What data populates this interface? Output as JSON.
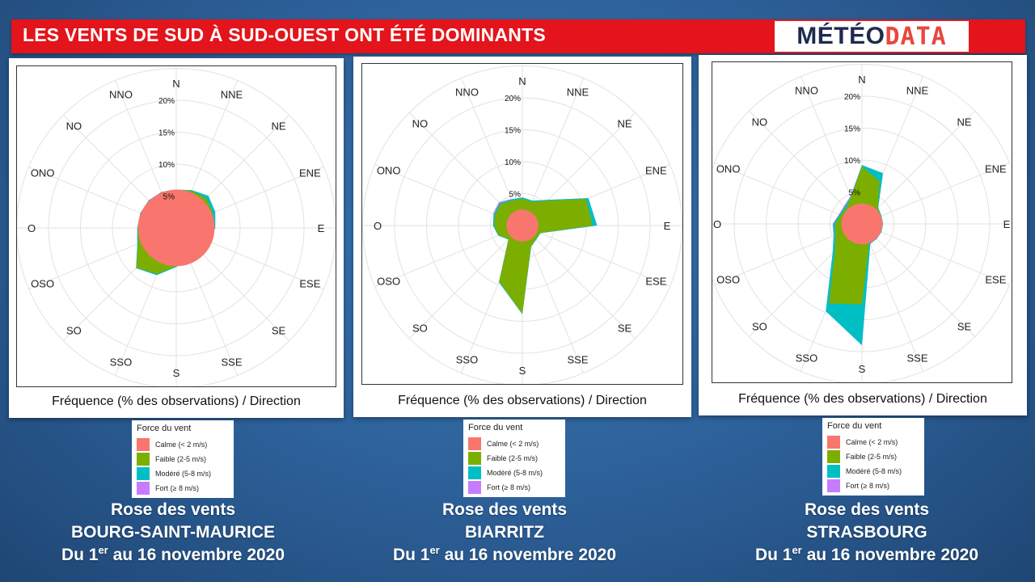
{
  "header": {
    "title": "LES VENTS DE SUD À SUD-OUEST ONT ÉTÉ DOMINANTS",
    "logo_part1": "MÉTÉO",
    "logo_part2": "DATA"
  },
  "colors": {
    "banner": "#e3141b",
    "calme": "#f8766d",
    "faible": "#7cae00",
    "modere": "#00bfc4",
    "fort": "#c77cff"
  },
  "legend": {
    "title": "Force du vent",
    "items": [
      {
        "label": "Calme (< 2 m/s)",
        "color": "#f8766d"
      },
      {
        "label": "Faible (2-5 m/s)",
        "color": "#7cae00"
      },
      {
        "label": "Modéré (5-8 m/s)",
        "color": "#00bfc4"
      },
      {
        "label": "Fort (≥ 8 m/s)",
        "color": "#c77cff"
      }
    ]
  },
  "caption": "Fréquence (% des observations) / Direction",
  "stations": [
    {
      "line1": "Rose des vents",
      "line2": "BOURG-SAINT-MAURICE",
      "line3_a": "Du 1",
      "line3_sup": "er",
      "line3_b": " au 16 novembre 2020"
    },
    {
      "line1": "Rose des vents",
      "line2": "BIARRITZ",
      "line3_a": "Du 1",
      "line3_sup": "er",
      "line3_b": " au 16 novembre 2020"
    },
    {
      "line1": "Rose des vents",
      "line2": "STRASBOURG",
      "line3_a": "Du 1",
      "line3_sup": "er",
      "line3_b": " au 16 novembre 2020"
    }
  ],
  "chart_data": [
    {
      "type": "radar",
      "station": "BOURG-SAINT-MAURICE",
      "directions": [
        "N",
        "NNE",
        "NE",
        "ENE",
        "E",
        "ESE",
        "SE",
        "SSE",
        "S",
        "SSO",
        "SO",
        "OSO",
        "O",
        "ONO",
        "NO",
        "NNO"
      ],
      "radial_ticks": [
        "5%",
        "10%",
        "15%",
        "20%"
      ],
      "rmax": 20,
      "calme": 6,
      "series": [
        {
          "name": "Calme (< 2 m/s)",
          "values": [
            6,
            6,
            6,
            6,
            6,
            6,
            6,
            6,
            6,
            6,
            6,
            6,
            6,
            6,
            6,
            6
          ]
        },
        {
          "name": "Faible (2-5 m/s)",
          "values": [
            6,
            6.3,
            6.6,
            6.2,
            6,
            5.5,
            5.5,
            5.3,
            6,
            7.8,
            8.8,
            6.5,
            6,
            6,
            6,
            6
          ]
        },
        {
          "name": "Modéré (5-8 m/s)",
          "values": [
            6,
            6.4,
            7.1,
            6.6,
            6.1,
            5.6,
            5.6,
            5.4,
            6.1,
            8,
            8.9,
            6.6,
            6.1,
            6.1,
            6.1,
            6.1
          ]
        },
        {
          "name": "Fort (≥ 8 m/s)",
          "values": [
            6,
            6.4,
            7.1,
            6.6,
            6.1,
            5.6,
            5.6,
            5.4,
            6.1,
            8,
            8.9,
            6.6,
            6.1,
            6.1,
            6.1,
            6.1
          ]
        }
      ]
    },
    {
      "type": "radar",
      "station": "BIARRITZ",
      "directions": [
        "N",
        "NNE",
        "NE",
        "ENE",
        "E",
        "ESE",
        "SE",
        "SSE",
        "S",
        "SSO",
        "SO",
        "OSO",
        "O",
        "ONO",
        "NO",
        "NNO"
      ],
      "radial_ticks": [
        "5%",
        "10%",
        "15%",
        "20%"
      ],
      "rmax": 20,
      "calme": 2.5,
      "series": [
        {
          "name": "Calme (< 2 m/s)",
          "values": [
            2.5,
            2.5,
            2.5,
            2.5,
            2.5,
            2.5,
            2.5,
            2.5,
            2.5,
            2.5,
            2.5,
            2.5,
            2.5,
            2.5,
            2.5,
            2.5
          ]
        },
        {
          "name": "Faible (2-5 m/s)",
          "values": [
            4.2,
            4,
            5.5,
            10.8,
            11,
            3,
            3,
            3.5,
            13.8,
            9.5,
            3,
            4,
            4.4,
            4.6,
            4.8,
            4.2
          ]
        },
        {
          "name": "Modéré (5-8 m/s)",
          "values": [
            4.4,
            4.2,
            5.7,
            11.2,
            11.7,
            3.1,
            3.1,
            3.6,
            13.9,
            9.6,
            3.1,
            4.1,
            4.6,
            4.8,
            5,
            4.4
          ]
        },
        {
          "name": "Fort (≥ 8 m/s)",
          "values": [
            4.4,
            4.2,
            5.7,
            11.2,
            11.7,
            3.1,
            3.1,
            3.6,
            13.9,
            9.6,
            3.1,
            4.1,
            4.6,
            4.9,
            5.2,
            4.5
          ]
        }
      ]
    },
    {
      "type": "radar",
      "station": "STRASBOURG",
      "directions": [
        "N",
        "NNE",
        "NE",
        "ENE",
        "E",
        "ESE",
        "SE",
        "SSE",
        "S",
        "SSO",
        "SO",
        "OSO",
        "O",
        "ONO",
        "NO",
        "NNO"
      ],
      "radial_ticks": [
        "5%",
        "10%",
        "15%",
        "20%"
      ],
      "rmax": 20,
      "calme": 3.2,
      "series": [
        {
          "name": "Calme (< 2 m/s)",
          "values": [
            3.2,
            3.2,
            3.2,
            3.2,
            3.2,
            3.2,
            3.2,
            3.2,
            3.2,
            3.2,
            3.2,
            3.2,
            3.2,
            3.2,
            3.2,
            3.2
          ]
        },
        {
          "name": "Faible (2-5 m/s)",
          "values": [
            9,
            7.2,
            3.5,
            3.2,
            3.2,
            3.2,
            3.2,
            3,
            12.6,
            13.5,
            6,
            4.5,
            4.2,
            3.6,
            3.5,
            4.5
          ]
        },
        {
          "name": "Modéré (5-8 m/s)",
          "values": [
            9.2,
            8.6,
            3.6,
            3.3,
            3.3,
            3.3,
            3.3,
            3.4,
            19,
            14.8,
            6.5,
            4.8,
            4.5,
            3.8,
            3.8,
            4.6
          ]
        },
        {
          "name": "Fort (≥ 8 m/s)",
          "values": [
            9.2,
            8.6,
            3.6,
            3.3,
            3.3,
            3.3,
            3.3,
            3.4,
            19,
            14.8,
            6.5,
            4.8,
            4.6,
            3.9,
            4,
            4.7
          ]
        }
      ]
    }
  ]
}
